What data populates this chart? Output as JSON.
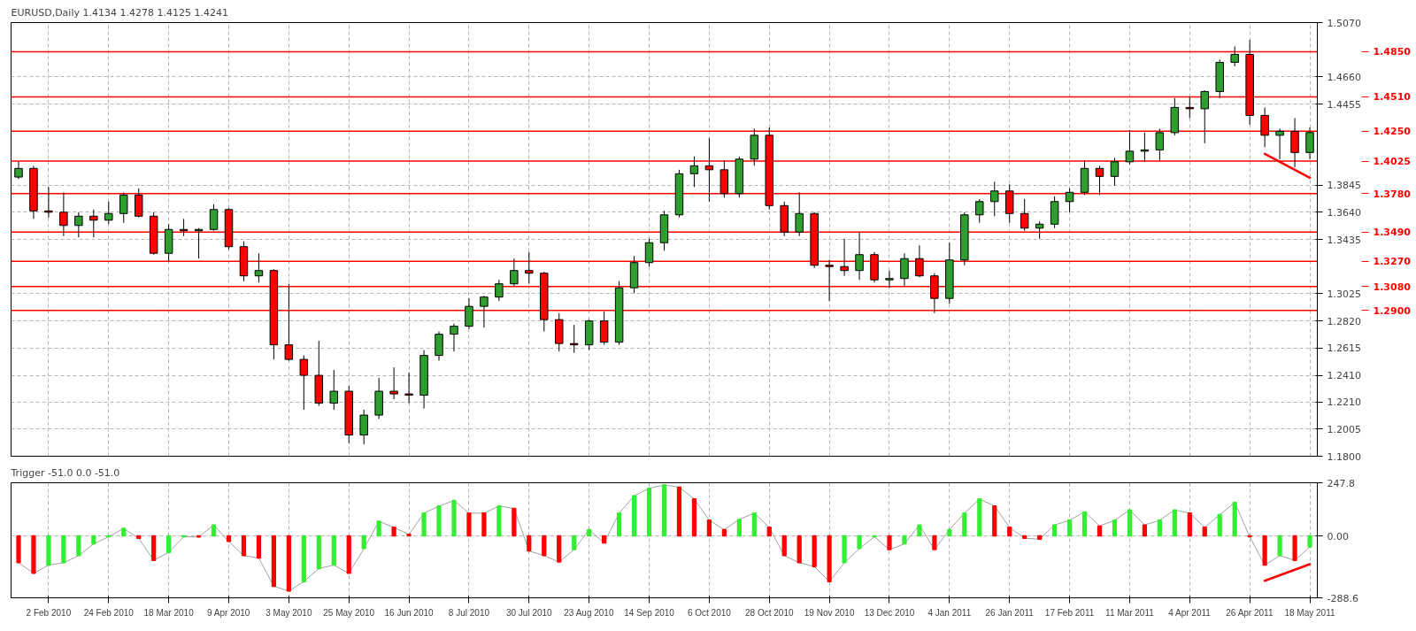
{
  "chart_data": [
    {
      "type": "candlestick",
      "title": "EURUSD,Daily  1.4134 1.4278 1.4125 1.4241",
      "categories": [
        null,
        null,
        null,
        null,
        null,
        null,
        null,
        null,
        null,
        null,
        null,
        null,
        null,
        null,
        null,
        null,
        null,
        null,
        null,
        null,
        null,
        null,
        null,
        null,
        null,
        null,
        null,
        null,
        null,
        null,
        null,
        null,
        null,
        null,
        null,
        null,
        null,
        null,
        null,
        null,
        null,
        null,
        null,
        null,
        null,
        null,
        null,
        null,
        null,
        null,
        null,
        null,
        null,
        null,
        null,
        null,
        null,
        null,
        null,
        null,
        null,
        null,
        null,
        null,
        null,
        null,
        null,
        null,
        null,
        null,
        null,
        null,
        null,
        null,
        null,
        null,
        null,
        null,
        null,
        null,
        null,
        null,
        null,
        null,
        null,
        null,
        null
      ],
      "ohlc": [
        [
          1.3905,
          1.402,
          1.389,
          1.397
        ],
        [
          1.397,
          1.399,
          1.359,
          1.365
        ],
        [
          1.365,
          1.383,
          1.36,
          1.364
        ],
        [
          1.364,
          1.379,
          1.346,
          1.354
        ],
        [
          1.354,
          1.364,
          1.345,
          1.361
        ],
        [
          1.361,
          1.366,
          1.345,
          1.358
        ],
        [
          1.358,
          1.372,
          1.355,
          1.363
        ],
        [
          1.363,
          1.379,
          1.356,
          1.377
        ],
        [
          1.377,
          1.382,
          1.36,
          1.361
        ],
        [
          1.361,
          1.364,
          1.332,
          1.333
        ],
        [
          1.333,
          1.355,
          1.327,
          1.351
        ],
        [
          1.351,
          1.359,
          1.346,
          1.35
        ],
        [
          1.35,
          1.352,
          1.329,
          1.351
        ],
        [
          1.351,
          1.37,
          1.35,
          1.366
        ],
        [
          1.366,
          1.367,
          1.336,
          1.338
        ],
        [
          1.338,
          1.342,
          1.312,
          1.316
        ],
        [
          1.316,
          1.333,
          1.311,
          1.32
        ],
        [
          1.32,
          1.321,
          1.253,
          1.264
        ],
        [
          1.264,
          1.31,
          1.252,
          1.253
        ],
        [
          1.253,
          1.256,
          1.215,
          1.241
        ],
        [
          1.241,
          1.267,
          1.218,
          1.22
        ],
        [
          1.22,
          1.245,
          1.215,
          1.229
        ],
        [
          1.229,
          1.233,
          1.19,
          1.196
        ],
        [
          1.196,
          1.215,
          1.189,
          1.211
        ],
        [
          1.211,
          1.239,
          1.208,
          1.229
        ],
        [
          1.229,
          1.247,
          1.223,
          1.227
        ],
        [
          1.227,
          1.243,
          1.22,
          1.226
        ],
        [
          1.226,
          1.26,
          1.216,
          1.256
        ],
        [
          1.256,
          1.274,
          1.252,
          1.272
        ],
        [
          1.272,
          1.28,
          1.259,
          1.278
        ],
        [
          1.278,
          1.299,
          1.276,
          1.293
        ],
        [
          1.293,
          1.301,
          1.277,
          1.3
        ],
        [
          1.3,
          1.313,
          1.297,
          1.31
        ],
        [
          1.31,
          1.329,
          1.308,
          1.32
        ],
        [
          1.32,
          1.334,
          1.31,
          1.318
        ],
        [
          1.318,
          1.319,
          1.274,
          1.283
        ],
        [
          1.283,
          1.288,
          1.259,
          1.265
        ],
        [
          1.265,
          1.279,
          1.258,
          1.264
        ],
        [
          1.264,
          1.283,
          1.26,
          1.282
        ],
        [
          1.282,
          1.289,
          1.264,
          1.266
        ],
        [
          1.266,
          1.312,
          1.264,
          1.307
        ],
        [
          1.307,
          1.331,
          1.303,
          1.326
        ],
        [
          1.326,
          1.344,
          1.323,
          1.341
        ],
        [
          1.341,
          1.365,
          1.335,
          1.362
        ],
        [
          1.362,
          1.396,
          1.36,
          1.393
        ],
        [
          1.393,
          1.406,
          1.383,
          1.399
        ],
        [
          1.399,
          1.42,
          1.372,
          1.396
        ],
        [
          1.396,
          1.403,
          1.375,
          1.378
        ],
        [
          1.378,
          1.406,
          1.375,
          1.404
        ],
        [
          1.404,
          1.427,
          1.399,
          1.422
        ],
        [
          1.422,
          1.428,
          1.366,
          1.369
        ],
        [
          1.369,
          1.372,
          1.346,
          1.349
        ],
        [
          1.349,
          1.379,
          1.346,
          1.363
        ],
        [
          1.363,
          1.364,
          1.322,
          1.324
        ],
        [
          1.324,
          1.328,
          1.297,
          1.323
        ],
        [
          1.323,
          1.344,
          1.316,
          1.32
        ],
        [
          1.32,
          1.349,
          1.313,
          1.332
        ],
        [
          1.332,
          1.334,
          1.311,
          1.313
        ],
        [
          1.313,
          1.32,
          1.307,
          1.314
        ],
        [
          1.314,
          1.333,
          1.308,
          1.329
        ],
        [
          1.329,
          1.339,
          1.315,
          1.316
        ],
        [
          1.316,
          1.318,
          1.288,
          1.299
        ],
        [
          1.299,
          1.341,
          1.295,
          1.328
        ],
        [
          1.328,
          1.364,
          1.324,
          1.362
        ],
        [
          1.362,
          1.374,
          1.356,
          1.372
        ],
        [
          1.372,
          1.387,
          1.361,
          1.38
        ],
        [
          1.38,
          1.385,
          1.356,
          1.363
        ],
        [
          1.363,
          1.374,
          1.35,
          1.352
        ],
        [
          1.352,
          1.357,
          1.344,
          1.355
        ],
        [
          1.355,
          1.376,
          1.352,
          1.372
        ],
        [
          1.372,
          1.382,
          1.364,
          1.379
        ],
        [
          1.379,
          1.403,
          1.377,
          1.397
        ],
        [
          1.397,
          1.399,
          1.377,
          1.391
        ],
        [
          1.391,
          1.405,
          1.384,
          1.402
        ],
        [
          1.402,
          1.426,
          1.4,
          1.41
        ],
        [
          1.41,
          1.424,
          1.402,
          1.411
        ],
        [
          1.411,
          1.427,
          1.403,
          1.424
        ],
        [
          1.424,
          1.45,
          1.422,
          1.443
        ],
        [
          1.443,
          1.451,
          1.435,
          1.442
        ],
        [
          1.442,
          1.456,
          1.416,
          1.455
        ],
        [
          1.455,
          1.479,
          1.45,
          1.477
        ],
        [
          1.477,
          1.489,
          1.474,
          1.483
        ],
        [
          1.483,
          1.494,
          1.43,
          1.437
        ],
        [
          1.437,
          1.443,
          1.413,
          1.422
        ],
        [
          1.422,
          1.427,
          1.404,
          1.425
        ],
        [
          1.425,
          1.435,
          1.398,
          1.409
        ],
        [
          1.409,
          1.4278,
          1.404,
          1.4241
        ]
      ],
      "colors": [
        "#2e9e2e",
        "#ff0000",
        "#ff0000",
        "#ff0000",
        "#2e9e2e",
        "#ff0000",
        "#2e9e2e",
        "#2e9e2e",
        "#ff0000",
        "#ff0000",
        "#2e9e2e",
        "#ff0000",
        "#2e9e2e",
        "#2e9e2e",
        "#ff0000",
        "#ff0000",
        "#2e9e2e",
        "#ff0000",
        "#ff0000",
        "#ff0000",
        "#ff0000",
        "#2e9e2e",
        "#ff0000",
        "#2e9e2e",
        "#2e9e2e",
        "#ff0000",
        "#ff0000",
        "#2e9e2e",
        "#2e9e2e",
        "#2e9e2e",
        "#2e9e2e",
        "#2e9e2e",
        "#2e9e2e",
        "#2e9e2e",
        "#ff0000",
        "#ff0000",
        "#ff0000",
        "#ff0000",
        "#2e9e2e",
        "#ff0000",
        "#2e9e2e",
        "#2e9e2e",
        "#2e9e2e",
        "#2e9e2e",
        "#2e9e2e",
        "#2e9e2e",
        "#ff0000",
        "#ff0000",
        "#2e9e2e",
        "#2e9e2e",
        "#ff0000",
        "#ff0000",
        "#2e9e2e",
        "#ff0000",
        "#ff0000",
        "#ff0000",
        "#2e9e2e",
        "#ff0000",
        "#2e9e2e",
        "#2e9e2e",
        "#ff0000",
        "#ff0000",
        "#2e9e2e",
        "#2e9e2e",
        "#2e9e2e",
        "#2e9e2e",
        "#ff0000",
        "#ff0000",
        "#2e9e2e",
        "#2e9e2e",
        "#2e9e2e",
        "#2e9e2e",
        "#ff0000",
        "#2e9e2e",
        "#2e9e2e",
        "#2e9e2e",
        "#2e9e2e",
        "#2e9e2e",
        "#ff0000",
        "#2e9e2e",
        "#2e9e2e",
        "#2e9e2e",
        "#ff0000",
        "#ff0000",
        "#2e9e2e",
        "#ff0000",
        "#2e9e2e"
      ],
      "series": [
        {
          "type": "line",
          "color": "#ff0000",
          "values": [
            null,
            null,
            null,
            null,
            null,
            null,
            null,
            null,
            null,
            null,
            null,
            null,
            null,
            null,
            null,
            null,
            null,
            null,
            null,
            null,
            null,
            null,
            null,
            null,
            null,
            null,
            null,
            null,
            null,
            null,
            null,
            null,
            null,
            null,
            null,
            null,
            null,
            null,
            null,
            null,
            null,
            null,
            null,
            null,
            null,
            null,
            null,
            null,
            null,
            null,
            null,
            null,
            null,
            null,
            null,
            null,
            null,
            null,
            null,
            null,
            null,
            null,
            null,
            null,
            null,
            null,
            null,
            null,
            null,
            null,
            null,
            null,
            null,
            null,
            null,
            null,
            null,
            null,
            null,
            null,
            null,
            null,
            null,
            1.408,
            null,
            null,
            1.39
          ]
        }
      ],
      "ylim": [
        1.18,
        1.507
      ],
      "yticks": [
        {
          "value": 1.507,
          "label": "1.5070"
        },
        {
          "value": 1.466,
          "label": "1.4660"
        },
        {
          "value": 1.4455,
          "label": "1.4455"
        },
        {
          "value": 1.3845,
          "label": "1.3845"
        },
        {
          "value": 1.364,
          "label": "1.3640"
        },
        {
          "value": 1.3435,
          "label": "1.3435"
        },
        {
          "value": 1.3025,
          "label": "1.3025"
        },
        {
          "value": 1.282,
          "label": "1.2820"
        },
        {
          "value": 1.2615,
          "label": "1.2615"
        },
        {
          "value": 1.241,
          "label": "1.2410"
        },
        {
          "value": 1.221,
          "label": "1.2210"
        },
        {
          "value": 1.2005,
          "label": "1.2005"
        },
        {
          "value": 1.18,
          "label": "1.1800"
        }
      ],
      "ref_lines": [
        {
          "axis": "y",
          "value": 1.485,
          "label": "1.4850",
          "color": "#ff0000"
        },
        {
          "axis": "y",
          "value": 1.451,
          "label": "1.4510",
          "color": "#ff0000"
        },
        {
          "axis": "y",
          "value": 1.425,
          "label": "1.4250",
          "color": "#ff0000"
        },
        {
          "axis": "y",
          "value": 1.4025,
          "label": "1.4025",
          "color": "#ff0000"
        },
        {
          "axis": "y",
          "value": 1.378,
          "label": "1.3780",
          "color": "#ff0000"
        },
        {
          "axis": "y",
          "value": 1.349,
          "label": "1.3490",
          "color": "#ff0000"
        },
        {
          "axis": "y",
          "value": 1.327,
          "label": "1.3270",
          "color": "#ff0000"
        },
        {
          "axis": "y",
          "value": 1.308,
          "label": "1.3080",
          "color": "#ff0000"
        },
        {
          "axis": "y",
          "value": 1.29,
          "label": "1.2900",
          "color": "#ff0000"
        }
      ],
      "grid": true,
      "tick_labels": "y"
    },
    {
      "type": "bar",
      "title": "Trigger -51.0 0.0 -51.0",
      "categories": [
        null,
        null,
        "2 Feb 2010",
        null,
        null,
        null,
        "24 Feb 2010",
        null,
        null,
        null,
        "18 Mar 2010",
        null,
        null,
        null,
        "9 Apr 2010",
        null,
        null,
        null,
        "3 May 2010",
        null,
        null,
        null,
        "25 May 2010",
        null,
        null,
        null,
        "16 Jun 2010",
        null,
        null,
        null,
        "8 Jul 2010",
        null,
        null,
        null,
        "30 Jul 2010",
        null,
        null,
        null,
        "23 Aug 2010",
        null,
        null,
        null,
        "14 Sep 2010",
        null,
        null,
        null,
        "6 Oct 2010",
        null,
        null,
        null,
        "28 Oct 2010",
        null,
        null,
        null,
        "19 Nov 2010",
        null,
        null,
        null,
        "13 Dec 2010",
        null,
        null,
        null,
        "4 Jan 2011",
        null,
        null,
        null,
        "26 Jan 2011",
        null,
        null,
        null,
        "17 Feb 2011",
        null,
        null,
        null,
        "11 Mar 2011",
        null,
        null,
        null,
        "4 Apr 2011",
        null,
        null,
        null,
        "26 Apr 2011",
        null,
        null,
        null,
        "18 May 2011"
      ],
      "values": [
        -125,
        -174,
        -136,
        -125,
        -92,
        -37,
        -4,
        35,
        -11,
        -114,
        -77,
        -4,
        -5,
        51,
        -26,
        -92,
        -103,
        -235,
        -257,
        -213,
        -152,
        -136,
        -174,
        -59,
        68,
        40,
        7,
        106,
        139,
        165,
        106,
        106,
        139,
        128,
        -70,
        -92,
        -121,
        -64,
        29,
        -33,
        106,
        187,
        222,
        238,
        227,
        172,
        73,
        29,
        77,
        106,
        40,
        -92,
        -125,
        -143,
        -213,
        -125,
        -59,
        -4,
        -64,
        -37,
        51,
        -64,
        29,
        106,
        172,
        139,
        40,
        -11,
        -15,
        51,
        73,
        112,
        46,
        73,
        121,
        51,
        73,
        121,
        106,
        40,
        99,
        156,
        -4,
        -136,
        -92,
        -114,
        -51
      ],
      "colors": [
        "#ff0000",
        "#ff0000",
        "#33ee33",
        "#33ee33",
        "#33ee33",
        "#33ee33",
        "#33ee33",
        "#33ee33",
        "#ff0000",
        "#ff0000",
        "#33ee33",
        "#33ee33",
        "#ff0000",
        "#33ee33",
        "#ff0000",
        "#ff0000",
        "#ff0000",
        "#ff0000",
        "#ff0000",
        "#33ee33",
        "#33ee33",
        "#33ee33",
        "#ff0000",
        "#33ee33",
        "#33ee33",
        "#ff0000",
        "#ff0000",
        "#33ee33",
        "#33ee33",
        "#33ee33",
        "#ff0000",
        "#ff0000",
        "#33ee33",
        "#ff0000",
        "#ff0000",
        "#ff0000",
        "#ff0000",
        "#33ee33",
        "#33ee33",
        "#ff0000",
        "#33ee33",
        "#33ee33",
        "#33ee33",
        "#33ee33",
        "#ff0000",
        "#ff0000",
        "#ff0000",
        "#ff0000",
        "#33ee33",
        "#33ee33",
        "#ff0000",
        "#ff0000",
        "#ff0000",
        "#ff0000",
        "#ff0000",
        "#33ee33",
        "#33ee33",
        "#33ee33",
        "#ff0000",
        "#33ee33",
        "#33ee33",
        "#ff0000",
        "#33ee33",
        "#33ee33",
        "#33ee33",
        "#ff0000",
        "#ff0000",
        "#ff0000",
        "#ff0000",
        "#33ee33",
        "#33ee33",
        "#33ee33",
        "#ff0000",
        "#33ee33",
        "#33ee33",
        "#ff0000",
        "#33ee33",
        "#33ee33",
        "#ff0000",
        "#ff0000",
        "#33ee33",
        "#33ee33",
        "#ff0000",
        "#ff0000",
        "#33ee33",
        "#ff0000",
        "#33ee33"
      ],
      "series": [
        {
          "type": "line",
          "color": "#ff0000",
          "values": [
            null,
            null,
            null,
            null,
            null,
            null,
            null,
            null,
            null,
            null,
            null,
            null,
            null,
            null,
            null,
            null,
            null,
            null,
            null,
            null,
            null,
            null,
            null,
            null,
            null,
            null,
            null,
            null,
            null,
            null,
            null,
            null,
            null,
            null,
            null,
            null,
            null,
            null,
            null,
            null,
            null,
            null,
            null,
            null,
            null,
            null,
            null,
            null,
            null,
            null,
            null,
            null,
            null,
            null,
            null,
            null,
            null,
            null,
            null,
            null,
            null,
            null,
            null,
            null,
            null,
            null,
            null,
            null,
            null,
            null,
            null,
            null,
            null,
            null,
            null,
            null,
            null,
            null,
            null,
            null,
            null,
            null,
            null,
            -209,
            null,
            null,
            -132
          ]
        }
      ],
      "ylim": [
        -288.6,
        247.8
      ],
      "yticks": [
        {
          "value": 247.8,
          "label": "247.8"
        },
        {
          "value": 0,
          "label": "0.00"
        },
        {
          "value": -288.6,
          "label": "-288.6"
        }
      ],
      "grid": true
    }
  ]
}
